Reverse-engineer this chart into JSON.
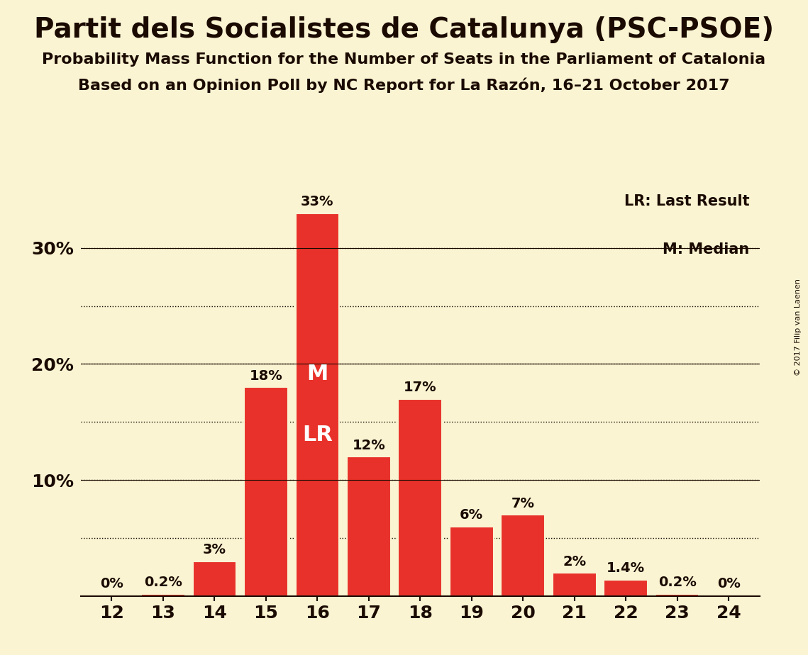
{
  "title": "Partit dels Socialistes de Catalunya (PSC-PSOE)",
  "subtitle1": "Probability Mass Function for the Number of Seats in the Parliament of Catalonia",
  "subtitle2": "Based on an Opinion Poll by NC Report for La Razón, 16–21 October 2017",
  "copyright": "© 2017 Filip van Laenen",
  "categories": [
    12,
    13,
    14,
    15,
    16,
    17,
    18,
    19,
    20,
    21,
    22,
    23,
    24
  ],
  "values": [
    0.0,
    0.2,
    3.0,
    18.0,
    33.0,
    12.0,
    17.0,
    6.0,
    7.0,
    2.0,
    1.4,
    0.2,
    0.0
  ],
  "labels": [
    "0%",
    "0.2%",
    "3%",
    "18%",
    "33%",
    "12%",
    "17%",
    "6%",
    "7%",
    "2%",
    "1.4%",
    "0.2%",
    "0%"
  ],
  "bar_color": "#e8312a",
  "background_color": "#faf4d3",
  "text_color": "#1a0a00",
  "median_seat": 16,
  "last_result_seat": 16,
  "median_label": "M",
  "last_result_label": "LR",
  "ylim": [
    0,
    35
  ],
  "dotted_yticks": [
    5,
    10,
    15,
    20,
    25,
    30
  ],
  "solid_yticks": [
    10,
    20,
    30
  ],
  "ytick_labels_pos": [
    10,
    20,
    30
  ],
  "ytick_labels_text": [
    "10%",
    "20%",
    "30%"
  ],
  "title_fontsize": 28,
  "subtitle_fontsize": 16,
  "label_fontsize": 14,
  "axis_fontsize": 18,
  "legend_fontsize": 15,
  "ml_fontsize": 22
}
